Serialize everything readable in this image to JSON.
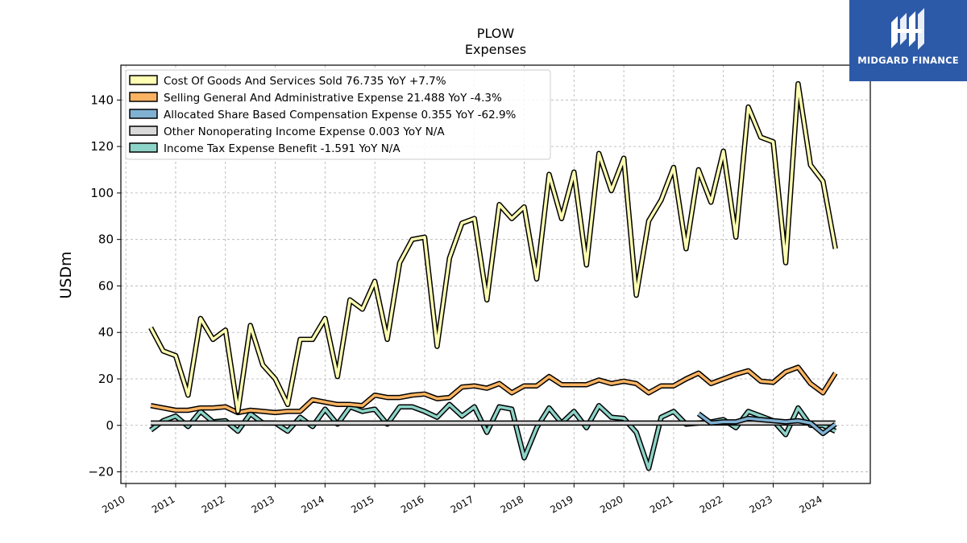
{
  "logo": {
    "text": "MIDGARD FINANCE",
    "background": "#2d5aa8"
  },
  "chart_data": {
    "type": "line",
    "title": "PLOW",
    "subtitle": "Expenses",
    "ylabel": "USDm",
    "xlabel": "",
    "ylim": [
      -25,
      155
    ],
    "xlim": [
      2009.9,
      2024.95
    ],
    "yticks": [
      -20,
      0,
      20,
      40,
      60,
      80,
      100,
      120,
      140
    ],
    "xticks": [
      2010,
      2011,
      2012,
      2013,
      2014,
      2015,
      2016,
      2017,
      2018,
      2019,
      2020,
      2021,
      2022,
      2023,
      2024
    ],
    "grid": true,
    "legend_position": "top-left",
    "x": [
      2010.5,
      2010.75,
      2011.0,
      2011.25,
      2011.5,
      2011.75,
      2012.0,
      2012.25,
      2012.5,
      2012.75,
      2013.0,
      2013.25,
      2013.5,
      2013.75,
      2014.0,
      2014.25,
      2014.5,
      2014.75,
      2015.0,
      2015.25,
      2015.5,
      2015.75,
      2016.0,
      2016.25,
      2016.5,
      2016.75,
      2017.0,
      2017.25,
      2017.5,
      2017.75,
      2018.0,
      2018.25,
      2018.5,
      2018.75,
      2019.0,
      2019.25,
      2019.5,
      2019.75,
      2020.0,
      2020.25,
      2020.5,
      2020.75,
      2021.0,
      2021.25,
      2021.5,
      2021.75,
      2022.0,
      2022.25,
      2022.5,
      2022.75,
      2023.0,
      2023.25,
      2023.5,
      2023.75,
      2024.0,
      2024.25
    ],
    "series": [
      {
        "name": "Cost Of Goods And Services Sold",
        "legend": "Cost Of Goods And Services Sold  76.735 YoY +7.7%",
        "color": "#ffffb3",
        "values": [
          42,
          32,
          30,
          13,
          46,
          37,
          41,
          6,
          43,
          26,
          20,
          9,
          37,
          37,
          46,
          21,
          54,
          50,
          62,
          37,
          70,
          80,
          81,
          34,
          72,
          87,
          89,
          54,
          95,
          89,
          94,
          63,
          108,
          89,
          109,
          69,
          117,
          101,
          115,
          56,
          88,
          97,
          111,
          76,
          110,
          96,
          118,
          81,
          137,
          124,
          122,
          70,
          147,
          112,
          105,
          76
        ]
      },
      {
        "name": "Selling General And Administrative Expense",
        "legend": "Selling General And Administrative Expense  21.488 YoY -4.3%",
        "color": "#fdb462",
        "values": [
          8.5,
          7.5,
          6.5,
          6.5,
          7.5,
          7.5,
          8,
          5.5,
          6.5,
          6,
          5.5,
          6,
          6,
          11,
          10,
          9,
          9,
          8.5,
          13,
          12,
          12,
          13,
          13.5,
          11.5,
          12,
          16.5,
          17,
          16,
          18,
          14,
          17,
          17,
          21,
          17.5,
          17.5,
          17.5,
          19.5,
          18,
          19,
          18,
          14,
          17,
          17,
          20,
          22.5,
          18,
          20,
          22,
          23.5,
          19,
          18.5,
          23,
          25,
          18,
          14,
          22.5
        ]
      },
      {
        "name": "Allocated Share Based Compensation Expense",
        "legend": "Allocated Share Based Compensation Expense  0.355 YoY -62.9%",
        "color": "#80b1d3",
        "values": [
          null,
          null,
          null,
          null,
          null,
          null,
          null,
          null,
          null,
          null,
          null,
          null,
          null,
          null,
          null,
          null,
          null,
          null,
          null,
          null,
          null,
          null,
          null,
          null,
          null,
          null,
          null,
          null,
          null,
          null,
          null,
          null,
          null,
          null,
          null,
          null,
          null,
          null,
          null,
          null,
          null,
          null,
          null,
          null,
          5,
          1,
          1.5,
          1.5,
          3,
          2.5,
          2,
          1.5,
          2,
          1,
          -3.5,
          0.5
        ]
      },
      {
        "name": "Other Nonoperating Income Expense",
        "legend": "Other Nonoperating Income Expense  0.003 YoY N/A",
        "color": "#d9d9d9",
        "values": [
          1,
          1,
          1,
          1,
          1,
          1,
          1,
          1,
          1,
          1,
          1,
          1,
          1,
          1,
          1,
          1,
          1,
          1,
          1,
          1,
          1,
          1,
          1,
          1,
          1,
          1,
          1,
          1,
          1,
          1,
          1,
          1,
          1,
          1,
          1,
          1,
          1,
          1,
          1,
          1,
          1,
          1,
          1,
          1,
          1,
          1,
          1,
          1,
          1,
          1,
          1,
          1,
          1,
          1,
          1,
          1
        ]
      },
      {
        "name": "Income Tax Expense Benefit",
        "legend": "Income Tax Expense Benefit  -1.591 YoY N/A",
        "color": "#8dd3c7",
        "values": [
          -2,
          2,
          4,
          -0.5,
          6,
          1.5,
          2,
          -2.5,
          5,
          1,
          1,
          -2.5,
          3.5,
          -0.5,
          7,
          0.5,
          8,
          6,
          7,
          0.5,
          8,
          8,
          6,
          3.5,
          9,
          4,
          8,
          -3,
          8,
          7,
          -14,
          -1,
          7.5,
          1,
          6,
          -1,
          8.5,
          3.5,
          3,
          -3,
          -18.5,
          3.5,
          6,
          0.5,
          1,
          1.5,
          2.5,
          -1,
          6,
          4,
          2,
          -4,
          7.5,
          0,
          0,
          -2.5
        ]
      }
    ]
  }
}
